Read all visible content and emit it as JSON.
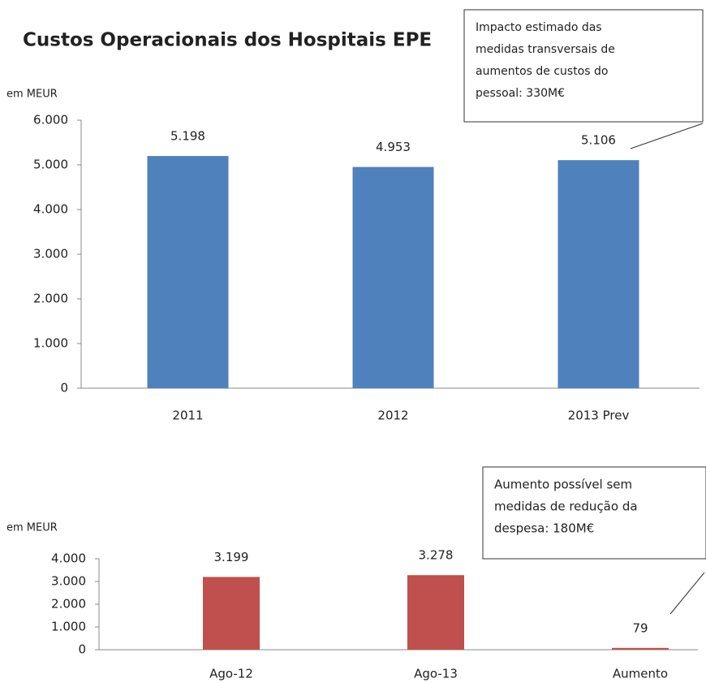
{
  "chart_data": [
    {
      "type": "bar",
      "title": "Custos Operacionais dos Hospitais EPE",
      "y_label": "em MEUR",
      "categories": [
        "2011",
        "2012",
        "2013 Prev"
      ],
      "values": [
        5198,
        4953,
        5106
      ],
      "value_labels": [
        "5.198",
        "4.953",
        "5.106"
      ],
      "color": "#4f81bd",
      "ylim": [
        0,
        6000
      ],
      "yticks": [
        0,
        {
          "value": 1000,
          "label": "1.000"
        },
        {
          "value": 2000,
          "label": "2.000"
        },
        {
          "value": 3000,
          "label": "3.000"
        },
        {
          "value": 4000,
          "label": "4.000"
        },
        {
          "value": 5000,
          "label": "5.000"
        },
        {
          "value": 6000,
          "label": "6.000"
        }
      ],
      "grid": false,
      "annotation": [
        "Impacto estimado das",
        "medidas transversais de",
        "aumentos de custos do",
        "pessoal: 330M€"
      ]
    },
    {
      "type": "bar",
      "y_label": "em MEUR",
      "categories": [
        "Ago-12",
        "Ago-13",
        "Aumento"
      ],
      "values": [
        3199,
        3278,
        79
      ],
      "value_labels": [
        "3.199",
        "3.278",
        "79"
      ],
      "color": "#c0504d",
      "ylim": [
        0,
        4000
      ],
      "yticks": [
        0,
        {
          "value": 1000,
          "label": "1.000"
        },
        {
          "value": 2000,
          "label": "2.000"
        },
        {
          "value": 3000,
          "label": "3.000"
        },
        {
          "value": 4000,
          "label": "4.000"
        }
      ],
      "grid": false,
      "annotation": [
        "Aumento  possível sem",
        "medidas de redução da",
        "despesa: 180M€"
      ]
    }
  ]
}
